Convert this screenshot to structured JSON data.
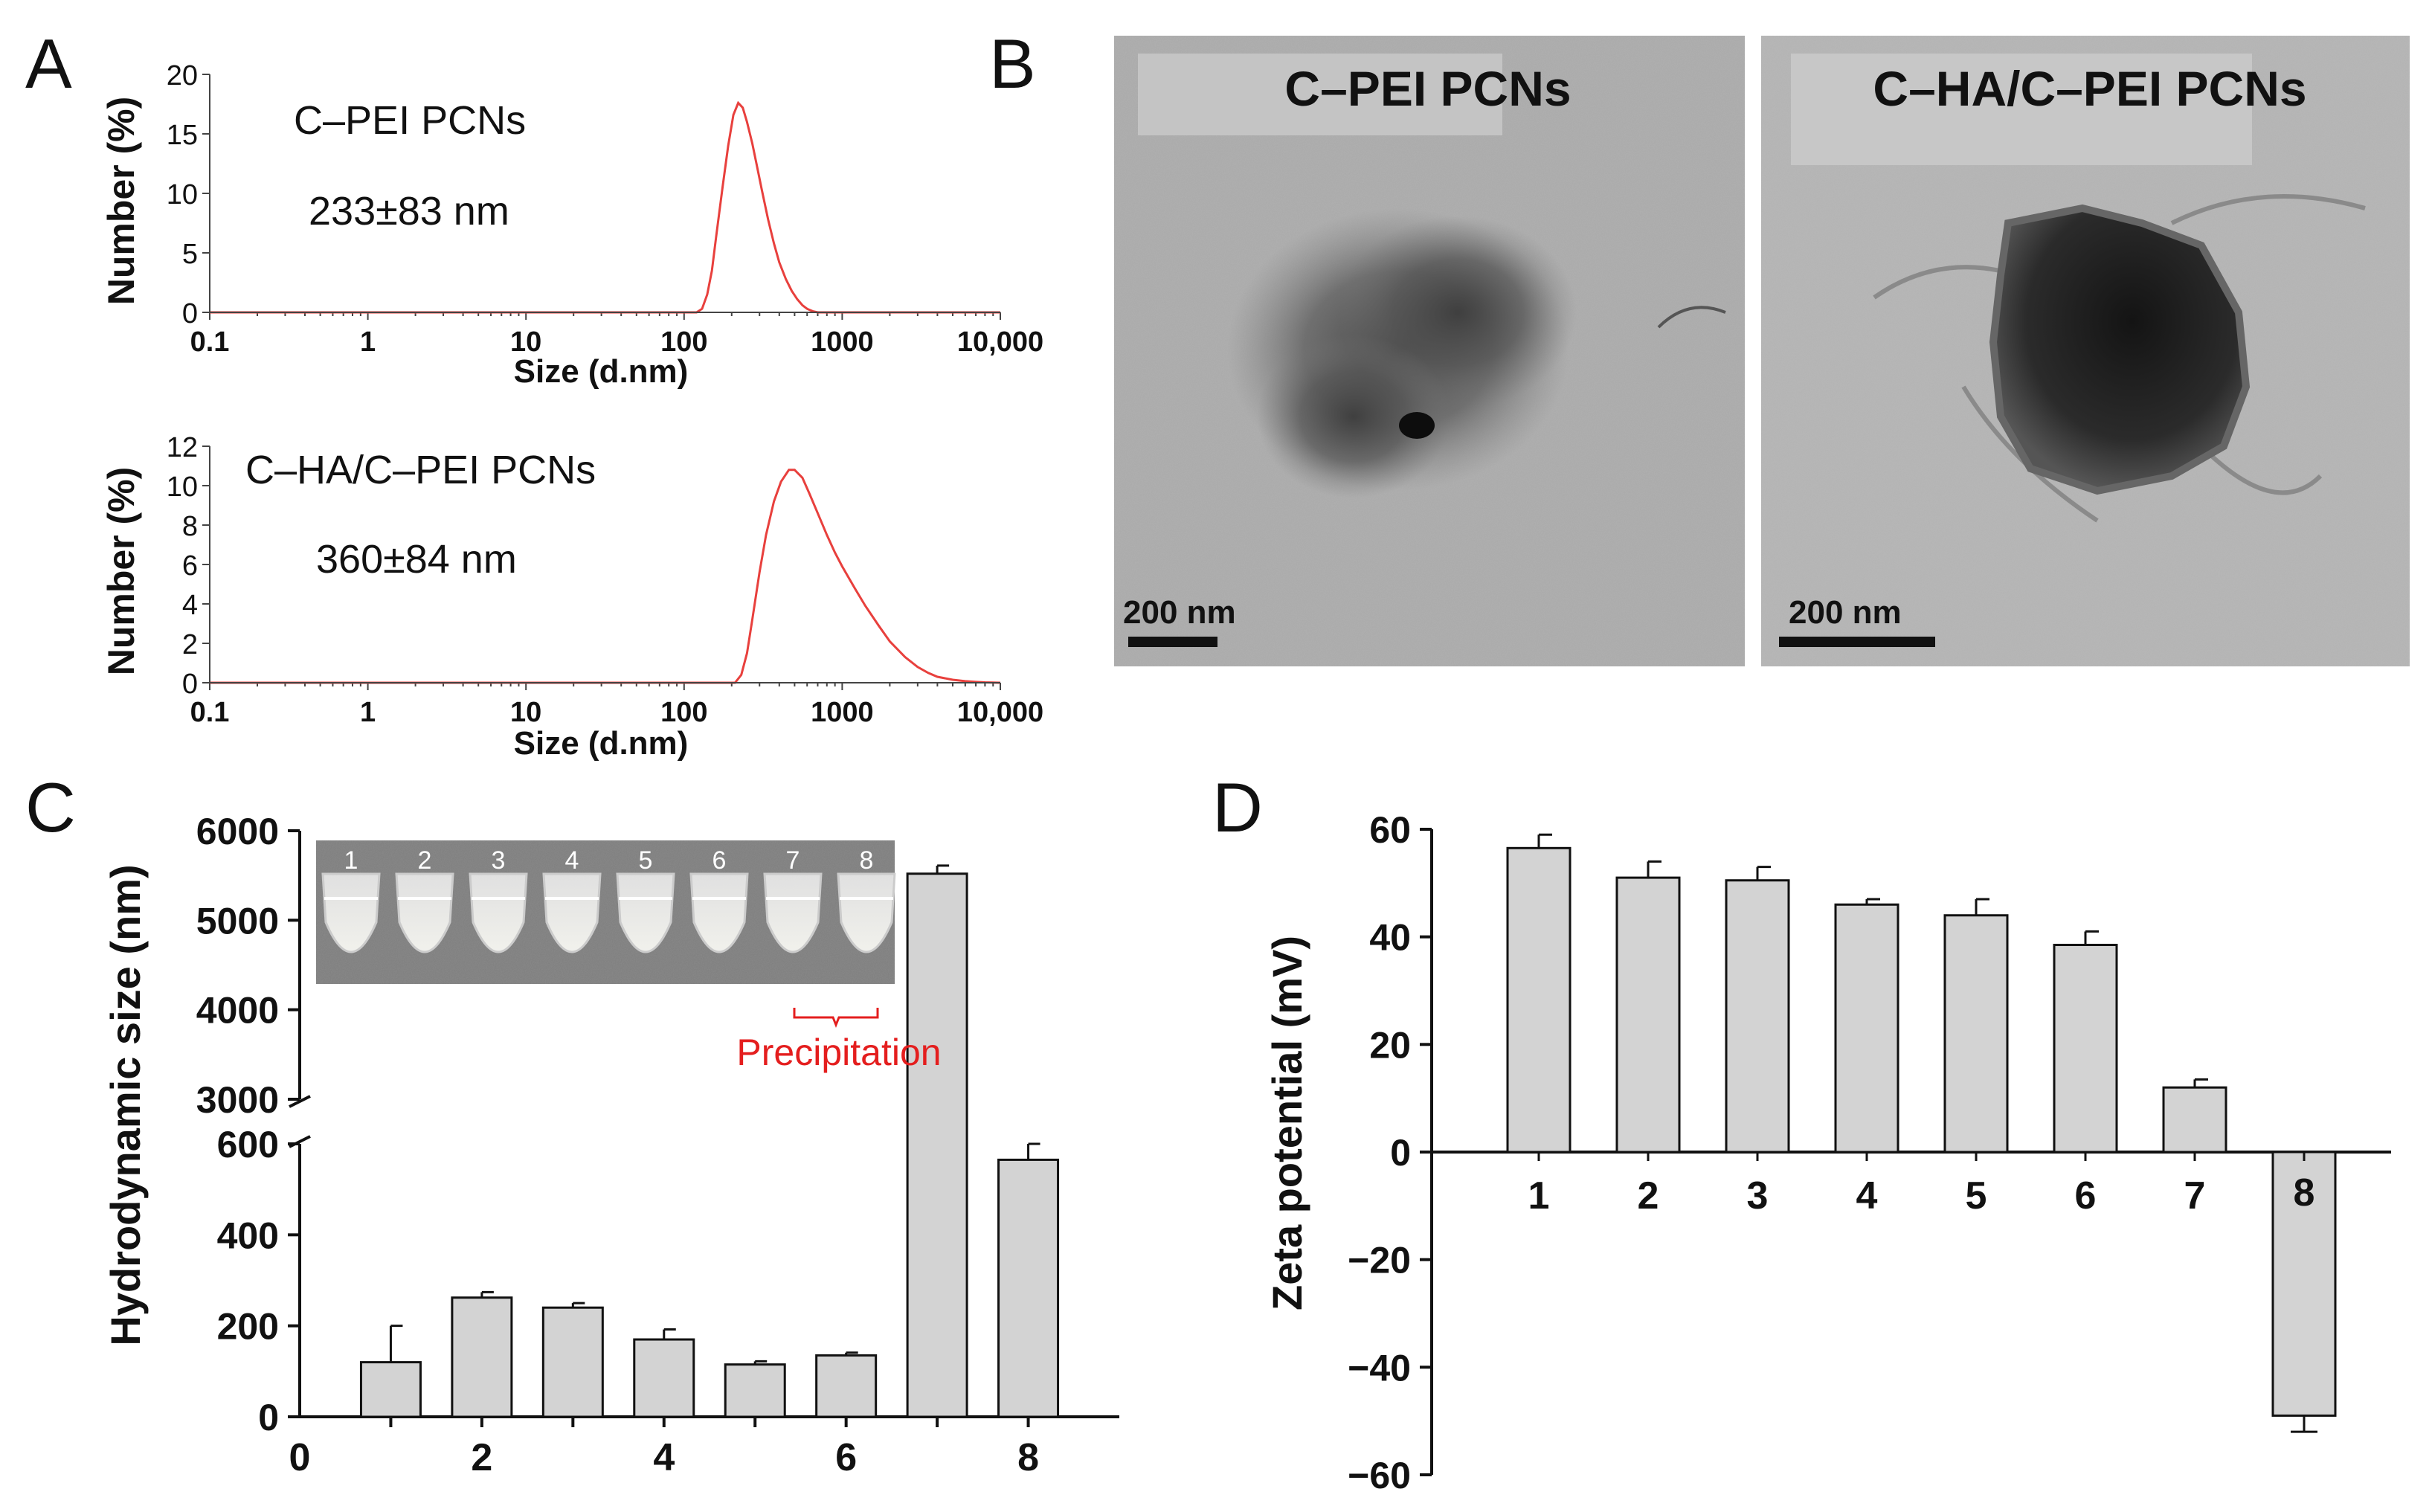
{
  "panels": {
    "A": {
      "letter": "A"
    },
    "B": {
      "letter": "B"
    },
    "C": {
      "letter": "C"
    },
    "D": {
      "letter": "D"
    }
  },
  "tem": {
    "left": {
      "label": "C–PEI PCNs",
      "scale_bar": "200 nm"
    },
    "right": {
      "label": "C–HA/C–PEI PCNs",
      "scale_bar": "200 nm"
    }
  },
  "inset": {
    "tube_labels": [
      "1",
      "2",
      "3",
      "4",
      "5",
      "6",
      "7",
      "8"
    ],
    "precipitation_label": "Precipitation"
  },
  "colors": {
    "bar_fill": "#d3d3d3",
    "dls_curve": "#e8403d",
    "precipitation": "#e41e1e"
  },
  "chart_data": [
    {
      "id": "A1",
      "type": "line",
      "xscale": "log",
      "xlabel": "Size (d.nm)",
      "ylabel": "Number (%)",
      "xlim": [
        0.1,
        10000
      ],
      "ylim": [
        0,
        20
      ],
      "yticks": [
        "0",
        "5",
        "10",
        "15",
        "20"
      ],
      "xticks": [
        "0.1",
        "1",
        "10",
        "100",
        "1000",
        "10,000"
      ],
      "annotation_name": "C–PEI PCNs",
      "annotation_value": "233±83 nm",
      "x": [
        0.1,
        120,
        130,
        140,
        150,
        160,
        175,
        190,
        205,
        220,
        235,
        250,
        270,
        290,
        310,
        340,
        370,
        400,
        440,
        480,
        520,
        560,
        600,
        650,
        700,
        750,
        800,
        1000,
        10000
      ],
      "y": [
        0,
        0,
        0.3,
        1.5,
        3.5,
        6.5,
        10.5,
        14.0,
        16.6,
        17.6,
        17.2,
        16.0,
        14.2,
        12.2,
        10.3,
        7.8,
        5.8,
        4.2,
        2.8,
        1.8,
        1.1,
        0.6,
        0.3,
        0.1,
        0,
        0,
        0,
        0,
        0
      ]
    },
    {
      "id": "A2",
      "type": "line",
      "xscale": "log",
      "xlabel": "Size (d.nm)",
      "ylabel": "Number (%)",
      "xlim": [
        0.1,
        10000
      ],
      "ylim": [
        0,
        12
      ],
      "yticks": [
        "0",
        "2",
        "4",
        "6",
        "8",
        "10",
        "12"
      ],
      "xticks": [
        "0.1",
        "1",
        "10",
        "100",
        "1000",
        "10,000"
      ],
      "annotation_name": "C–HA/C–PEI PCNs",
      "annotation_value": "360±84 nm",
      "x": [
        0.1,
        210,
        230,
        250,
        270,
        300,
        330,
        370,
        410,
        460,
        500,
        560,
        620,
        700,
        800,
        900,
        1000,
        1200,
        1400,
        1700,
        2000,
        2500,
        3000,
        3500,
        4000,
        5000,
        6000,
        7000,
        8000,
        10000
      ],
      "y": [
        0,
        0,
        0.4,
        1.5,
        3.2,
        5.6,
        7.5,
        9.2,
        10.2,
        10.8,
        10.8,
        10.4,
        9.6,
        8.6,
        7.5,
        6.6,
        5.9,
        4.8,
        3.9,
        2.9,
        2.1,
        1.3,
        0.8,
        0.5,
        0.3,
        0.15,
        0.08,
        0.04,
        0.02,
        0
      ]
    },
    {
      "id": "C",
      "type": "bar",
      "xlabel": "",
      "ylabel": "Hydrodynamic size (nm)",
      "broken_axis": true,
      "lower_ylim": [
        0,
        600
      ],
      "upper_ylim": [
        3000,
        6000
      ],
      "lower_yticks": [
        "0",
        "200",
        "400",
        "600"
      ],
      "upper_yticks": [
        "3000",
        "4000",
        "5000",
        "6000"
      ],
      "xlim": [
        0,
        9
      ],
      "xticks": [
        "0",
        "2",
        "4",
        "6",
        "8"
      ],
      "categories": [
        1,
        2,
        3,
        4,
        5,
        6,
        7,
        8
      ],
      "values": [
        120,
        262,
        240,
        170,
        115,
        135,
        5520,
        565
      ],
      "errors": [
        80,
        12,
        10,
        22,
        7,
        6,
        90,
        35
      ]
    },
    {
      "id": "D",
      "type": "bar",
      "xlabel": "",
      "ylabel": "Zeta potential (mV)",
      "ylim": [
        -60,
        60
      ],
      "yticks": [
        "60",
        "40",
        "20",
        "0",
        "−20",
        "−40",
        "−60"
      ],
      "categories": [
        "1",
        "2",
        "3",
        "4",
        "5",
        "6",
        "7",
        "8"
      ],
      "values": [
        56.5,
        51,
        50.5,
        46,
        44,
        38.5,
        12,
        -49
      ],
      "errors": [
        2.5,
        3,
        2.5,
        1,
        3,
        2.5,
        1.5,
        3
      ]
    }
  ]
}
